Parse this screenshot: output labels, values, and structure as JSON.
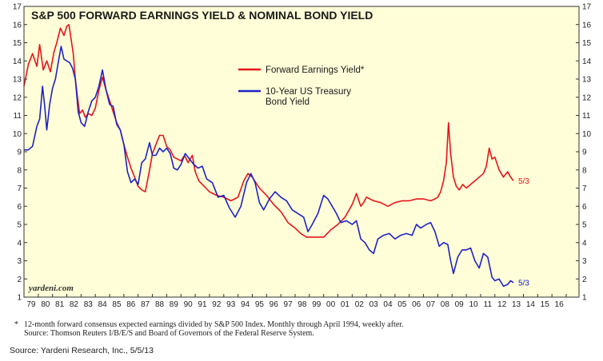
{
  "chart_data": {
    "type": "line",
    "title": "S&P 500 FORWARD EARNINGS YIELD & NOMINAL BOND YIELD",
    "ylim": [
      1,
      17
    ],
    "yticks": [
      1,
      2,
      3,
      4,
      5,
      6,
      7,
      8,
      9,
      10,
      11,
      12,
      13,
      14,
      15,
      16,
      17
    ],
    "xlim": [
      1979,
      2017
    ],
    "xticks": [
      {
        "label": "79",
        "value": 1979.5
      },
      {
        "label": "80",
        "value": 1980.5
      },
      {
        "label": "81",
        "value": 1981.5
      },
      {
        "label": "82",
        "value": 1982.5
      },
      {
        "label": "83",
        "value": 1983.5
      },
      {
        "label": "84",
        "value": 1984.5
      },
      {
        "label": "85",
        "value": 1985.5
      },
      {
        "label": "86",
        "value": 1986.5
      },
      {
        "label": "87",
        "value": 1987.5
      },
      {
        "label": "88",
        "value": 1988.5
      },
      {
        "label": "89",
        "value": 1989.5
      },
      {
        "label": "90",
        "value": 1990.5
      },
      {
        "label": "91",
        "value": 1991.5
      },
      {
        "label": "92",
        "value": 1992.5
      },
      {
        "label": "93",
        "value": 1993.5
      },
      {
        "label": "94",
        "value": 1994.5
      },
      {
        "label": "95",
        "value": 1995.5
      },
      {
        "label": "96",
        "value": 1996.5
      },
      {
        "label": "97",
        "value": 1997.5
      },
      {
        "label": "98",
        "value": 1998.5
      },
      {
        "label": "99",
        "value": 1999.5
      },
      {
        "label": "00",
        "value": 2000.5
      },
      {
        "label": "01",
        "value": 2001.5
      },
      {
        "label": "02",
        "value": 2002.5
      },
      {
        "label": "03",
        "value": 2003.5
      },
      {
        "label": "04",
        "value": 2004.5
      },
      {
        "label": "05",
        "value": 2005.5
      },
      {
        "label": "06",
        "value": 2006.5
      },
      {
        "label": "07",
        "value": 2007.5
      },
      {
        "label": "08",
        "value": 2008.5
      },
      {
        "label": "09",
        "value": 2009.5
      },
      {
        "label": "10",
        "value": 2010.5
      },
      {
        "label": "11",
        "value": 2011.5
      },
      {
        "label": "12",
        "value": 2012.5
      },
      {
        "label": "13",
        "value": 2013.5
      },
      {
        "label": "14",
        "value": 2014.5
      },
      {
        "label": "15",
        "value": 2015.5
      },
      {
        "label": "16",
        "value": 2016.5
      }
    ],
    "series": [
      {
        "name": "Forward Earnings Yield*",
        "color": "#e8141b",
        "end_label": "5/3",
        "x": [
          1979.0,
          1979.3,
          1979.6,
          1979.9,
          1980.1,
          1980.35,
          1980.6,
          1980.85,
          1981.1,
          1981.3,
          1981.55,
          1981.8,
          1982.0,
          1982.15,
          1982.3,
          1982.45,
          1982.6,
          1982.75,
          1982.9,
          1983.1,
          1983.3,
          1983.5,
          1983.75,
          1984.0,
          1984.25,
          1984.5,
          1984.75,
          1985.0,
          1985.25,
          1985.5,
          1985.75,
          1986.0,
          1986.25,
          1986.5,
          1986.75,
          1987.0,
          1987.25,
          1987.5,
          1987.8,
          1988.0,
          1988.25,
          1988.5,
          1988.75,
          1989.0,
          1989.25,
          1989.5,
          1989.75,
          1990.0,
          1990.25,
          1990.5,
          1990.8,
          1991.0,
          1991.25,
          1991.5,
          1991.75,
          1992.0,
          1992.5,
          1993.0,
          1993.5,
          1994.0,
          1994.4,
          1994.7,
          1995.0,
          1995.5,
          1996.0,
          1996.5,
          1997.0,
          1997.5,
          1998.0,
          1998.4,
          1998.8,
          1999.2,
          1999.6,
          2000.0,
          2000.5,
          2001.0,
          2001.5,
          2002.0,
          2002.3,
          2002.6,
          2002.8,
          2003.0,
          2003.5,
          2004.0,
          2004.5,
          2005.0,
          2005.5,
          2006.0,
          2006.5,
          2007.0,
          2007.5,
          2007.8,
          2008.0,
          2008.2,
          2008.4,
          2008.6,
          2008.75,
          2008.9,
          2009.1,
          2009.3,
          2009.5,
          2009.75,
          2010.0,
          2010.3,
          2010.6,
          2010.9,
          2011.2,
          2011.4,
          2011.6,
          2011.8,
          2012.0,
          2012.3,
          2012.6,
          2012.9,
          2013.1,
          2013.3
        ],
        "values": [
          12.6,
          13.8,
          14.4,
          13.7,
          14.9,
          13.5,
          14.0,
          13.4,
          14.5,
          15.0,
          15.8,
          15.4,
          15.9,
          16.0,
          15.2,
          14.4,
          13.0,
          12.0,
          11.1,
          11.3,
          10.9,
          11.1,
          11.0,
          11.4,
          12.4,
          13.1,
          12.4,
          11.8,
          11.2,
          10.6,
          10.2,
          9.4,
          8.7,
          8.1,
          7.6,
          7.1,
          6.9,
          6.8,
          8.0,
          8.9,
          9.4,
          9.9,
          9.9,
          9.3,
          9.1,
          8.7,
          8.6,
          8.5,
          8.8,
          8.4,
          8.8,
          7.9,
          7.4,
          7.2,
          7.0,
          6.8,
          6.6,
          6.5,
          6.3,
          6.5,
          7.4,
          7.8,
          7.6,
          7.0,
          6.6,
          6.1,
          5.7,
          5.1,
          4.8,
          4.5,
          4.3,
          4.3,
          4.3,
          4.3,
          4.7,
          5.0,
          5.4,
          6.1,
          6.7,
          6.0,
          6.2,
          6.5,
          6.3,
          6.2,
          6.0,
          6.2,
          6.3,
          6.3,
          6.4,
          6.4,
          6.3,
          6.4,
          6.5,
          6.8,
          7.4,
          8.4,
          10.6,
          8.9,
          7.6,
          7.1,
          6.9,
          7.2,
          7.0,
          7.2,
          7.4,
          7.6,
          7.8,
          8.2,
          9.2,
          8.6,
          8.7,
          8.0,
          7.6,
          7.9,
          7.6,
          7.4
        ]
      },
      {
        "name": "10-Year US Treasury Bond Yield",
        "color": "#1e22c8",
        "end_label": "5/3",
        "x": [
          1979.0,
          1979.3,
          1979.6,
          1979.9,
          1980.1,
          1980.3,
          1980.45,
          1980.6,
          1980.8,
          1981.0,
          1981.2,
          1981.4,
          1981.6,
          1981.8,
          1982.0,
          1982.2,
          1982.4,
          1982.6,
          1982.8,
          1983.0,
          1983.25,
          1983.5,
          1983.75,
          1984.0,
          1984.25,
          1984.5,
          1984.75,
          1985.0,
          1985.25,
          1985.5,
          1985.75,
          1986.0,
          1986.25,
          1986.5,
          1986.75,
          1987.0,
          1987.25,
          1987.5,
          1987.8,
          1988.0,
          1988.25,
          1988.5,
          1988.75,
          1989.0,
          1989.25,
          1989.5,
          1989.75,
          1990.0,
          1990.3,
          1990.6,
          1990.9,
          1991.2,
          1991.5,
          1991.8,
          1992.2,
          1992.6,
          1993.0,
          1993.4,
          1993.8,
          1994.2,
          1994.6,
          1994.9,
          1995.2,
          1995.5,
          1995.8,
          1996.2,
          1996.6,
          1997.0,
          1997.4,
          1997.8,
          1998.2,
          1998.6,
          1998.9,
          1999.2,
          1999.6,
          2000.0,
          2000.3,
          2000.6,
          2000.9,
          2001.2,
          2001.6,
          2002.0,
          2002.3,
          2002.6,
          2002.9,
          2003.2,
          2003.5,
          2003.8,
          2004.2,
          2004.6,
          2005.0,
          2005.4,
          2005.8,
          2006.2,
          2006.5,
          2006.8,
          2007.2,
          2007.5,
          2007.8,
          2008.1,
          2008.4,
          2008.7,
          2008.9,
          2009.1,
          2009.4,
          2009.7,
          2010.0,
          2010.3,
          2010.6,
          2010.9,
          2011.2,
          2011.5,
          2011.8,
          2012.0,
          2012.3,
          2012.6,
          2012.9,
          2013.1,
          2013.3
        ],
        "values": [
          9.1,
          9.1,
          9.3,
          10.4,
          10.8,
          12.6,
          11.5,
          10.2,
          11.6,
          12.5,
          13.0,
          13.9,
          14.8,
          14.1,
          14.0,
          13.9,
          13.6,
          13.0,
          11.2,
          10.6,
          10.4,
          11.2,
          11.8,
          12.0,
          12.6,
          13.5,
          12.4,
          11.6,
          11.5,
          10.5,
          10.2,
          9.4,
          7.9,
          7.3,
          7.5,
          7.2,
          8.4,
          8.6,
          9.5,
          8.8,
          8.8,
          9.2,
          9.0,
          9.2,
          8.9,
          8.1,
          8.0,
          8.3,
          8.9,
          8.6,
          8.3,
          8.1,
          8.2,
          7.5,
          7.3,
          6.5,
          6.6,
          5.9,
          5.4,
          6.0,
          7.3,
          7.8,
          7.3,
          6.2,
          5.8,
          6.4,
          6.8,
          6.5,
          6.3,
          5.8,
          5.6,
          5.4,
          4.6,
          5.0,
          5.6,
          6.6,
          6.4,
          6.0,
          5.6,
          5.1,
          5.2,
          5.0,
          5.2,
          4.2,
          4.0,
          3.6,
          3.4,
          4.2,
          4.4,
          4.5,
          4.2,
          4.4,
          4.5,
          4.4,
          5.0,
          4.8,
          5.0,
          5.1,
          4.6,
          3.8,
          4.0,
          3.9,
          3.0,
          2.3,
          3.2,
          3.6,
          3.6,
          3.7,
          3.0,
          2.6,
          3.4,
          3.2,
          2.1,
          1.9,
          2.0,
          1.6,
          1.7,
          1.9,
          1.8
        ]
      }
    ],
    "legend": [
      {
        "label": "Forward Earnings Yield*",
        "color": "#e8141b"
      },
      {
        "label_lines": [
          "10-Year US Treasury",
          "Bond Yield"
        ],
        "color": "#1e22c8"
      }
    ],
    "grid": false,
    "watermark": "yardeni.com"
  },
  "footnote": {
    "marker": "*",
    "lines": [
      "12-month forward consensus expected earnings divided by S&P 500 Index. Monthly through April 1994, weekly after.",
      "Source: Thomson Reuters I/B/E/S and Board of Governors of the Federal Reserve System."
    ]
  },
  "source": "Source: Yardeni Research, Inc., 5/5/13",
  "colors": {
    "plot_background": "#fffed8",
    "frame": "#333333"
  }
}
